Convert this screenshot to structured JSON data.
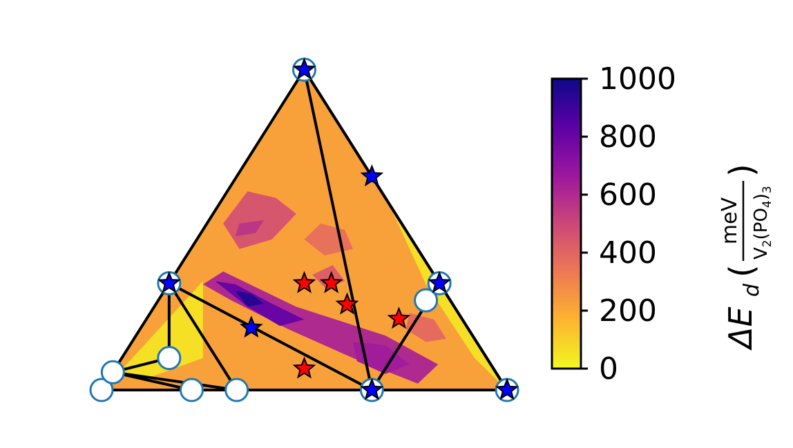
{
  "chart_data": {
    "type": "ternary-contour",
    "title": "",
    "colorbar": {
      "label_prefix": "ΔE",
      "label_subscript": "d",
      "unit_numerator": "meV",
      "unit_denominator_base": "V",
      "unit_denominator_sub1": "2",
      "unit_denominator_mid": "(PO",
      "unit_denominator_sub2": "4",
      "unit_denominator_close": ")",
      "unit_denominator_sub3": "3",
      "ticks": [
        0,
        200,
        400,
        600,
        800,
        1000
      ],
      "range": [
        0,
        1000
      ],
      "colormap": [
        "#f0f921",
        "#fdb42f",
        "#ed7953",
        "#cc4778",
        "#9c179e",
        "#5c01a6",
        "#0d0887"
      ]
    },
    "field_level": 220,
    "field_regions": [
      {
        "name": "upper-left band",
        "value": 450,
        "points": [
          [
            0.36,
            0.62
          ],
          [
            0.3,
            0.52
          ],
          [
            0.34,
            0.44
          ],
          [
            0.42,
            0.47
          ],
          [
            0.48,
            0.55
          ],
          [
            0.43,
            0.6
          ]
        ]
      },
      {
        "name": "upper-left core",
        "value": 560,
        "points": [
          [
            0.34,
            0.52
          ],
          [
            0.33,
            0.48
          ],
          [
            0.38,
            0.49
          ],
          [
            0.4,
            0.53
          ]
        ]
      },
      {
        "name": "upper-middle patch",
        "value": 360,
        "points": [
          [
            0.5,
            0.47
          ],
          [
            0.55,
            0.42
          ],
          [
            0.62,
            0.44
          ],
          [
            0.6,
            0.5
          ],
          [
            0.54,
            0.52
          ]
        ]
      },
      {
        "name": "diagonal trough outer",
        "value": 600,
        "points": [
          [
            0.25,
            0.33
          ],
          [
            0.3,
            0.37
          ],
          [
            0.48,
            0.26
          ],
          [
            0.7,
            0.17
          ],
          [
            0.83,
            0.08
          ],
          [
            0.78,
            0.02
          ],
          [
            0.62,
            0.1
          ],
          [
            0.46,
            0.19
          ],
          [
            0.32,
            0.28
          ]
        ]
      },
      {
        "name": "diagonal trough mid",
        "value": 800,
        "points": [
          [
            0.28,
            0.34
          ],
          [
            0.33,
            0.33
          ],
          [
            0.42,
            0.27
          ],
          [
            0.5,
            0.22
          ],
          [
            0.44,
            0.2
          ],
          [
            0.36,
            0.26
          ]
        ]
      },
      {
        "name": "diagonal trough core",
        "value": 950,
        "points": [
          [
            0.33,
            0.31
          ],
          [
            0.37,
            0.3
          ],
          [
            0.4,
            0.27
          ],
          [
            0.36,
            0.26
          ]
        ]
      },
      {
        "name": "right lobe",
        "value": 650,
        "points": [
          [
            0.62,
            0.15
          ],
          [
            0.7,
            0.14
          ],
          [
            0.76,
            0.08
          ],
          [
            0.7,
            0.05
          ],
          [
            0.63,
            0.09
          ]
        ]
      },
      {
        "name": "center patch",
        "value": 420,
        "points": [
          [
            0.52,
            0.36
          ],
          [
            0.55,
            0.32
          ],
          [
            0.6,
            0.34
          ],
          [
            0.57,
            0.39
          ]
        ]
      },
      {
        "name": "lower-right patch",
        "value": 380,
        "points": [
          [
            0.76,
            0.24
          ],
          [
            0.82,
            0.22
          ],
          [
            0.85,
            0.16
          ],
          [
            0.8,
            0.15
          ],
          [
            0.75,
            0.19
          ]
        ]
      },
      {
        "name": "lower-left yellow",
        "value": 60,
        "points": [
          [
            0.04,
            0.05
          ],
          [
            0.25,
            0.34
          ],
          [
            0.25,
            0.1
          ],
          [
            0.12,
            0.04
          ]
        ]
      },
      {
        "name": "right edge yellow",
        "value": 60,
        "points": [
          [
            0.5,
            1.0
          ],
          [
            0.85,
            0.34
          ],
          [
            1.0,
            0.0
          ],
          [
            0.92,
            0.1
          ],
          [
            0.8,
            0.33
          ],
          [
            0.68,
            0.66
          ]
        ]
      }
    ],
    "hull_lines": [
      [
        [
          0.0,
          0.0
        ],
        [
          0.5,
          1.0
        ]
      ],
      [
        [
          0.5,
          1.0
        ],
        [
          1.0,
          0.0
        ]
      ],
      [
        [
          0.0,
          0.0
        ],
        [
          1.0,
          0.0
        ]
      ],
      [
        [
          0.5,
          1.0
        ],
        [
          0.6667,
          0.0
        ]
      ],
      [
        [
          0.5,
          1.0
        ],
        [
          0.8333,
          0.3333
        ]
      ],
      [
        [
          0.6667,
          0.0
        ],
        [
          0.8333,
          0.3333
        ]
      ],
      [
        [
          0.1667,
          0.3333
        ],
        [
          0.1667,
          0.1
        ]
      ],
      [
        [
          0.1667,
          0.3333
        ],
        [
          0.3333,
          0.0
        ]
      ],
      [
        [
          0.1667,
          0.3333
        ],
        [
          0.6667,
          0.0
        ]
      ],
      [
        [
          0.0278,
          0.0556
        ],
        [
          0.1667,
          0.1
        ]
      ],
      [
        [
          0.0278,
          0.0556
        ],
        [
          0.2222,
          0.0
        ]
      ],
      [
        [
          0.0278,
          0.0556
        ],
        [
          0.3333,
          0.0
        ]
      ],
      [
        [
          0.8333,
          0.3333
        ],
        [
          1.0,
          0.0
        ]
      ]
    ],
    "open_circles": [
      [
        0.5,
        1.0
      ],
      [
        0.1667,
        0.3333
      ],
      [
        0.8333,
        0.3333
      ],
      [
        0.6667,
        0.0
      ],
      [
        1.0,
        0.0
      ],
      [
        0.0,
        0.0
      ],
      [
        0.0278,
        0.0556
      ],
      [
        0.1667,
        0.1
      ],
      [
        0.2222,
        0.0
      ],
      [
        0.3333,
        0.0
      ],
      [
        0.8,
        0.28
      ]
    ],
    "blue_stars": [
      [
        0.5,
        1.0
      ],
      [
        0.1667,
        0.3333
      ],
      [
        0.8333,
        0.3333
      ],
      [
        0.6667,
        0.0
      ],
      [
        1.0,
        0.0
      ],
      [
        0.6667,
        0.6667
      ],
      [
        0.3694,
        0.1944
      ]
    ],
    "red_stars": [
      [
        0.5,
        0.3333
      ],
      [
        0.5667,
        0.3333
      ],
      [
        0.6056,
        0.2667
      ],
      [
        0.7333,
        0.2222
      ],
      [
        0.5,
        0.0667
      ]
    ],
    "colors": {
      "open_circle_edge": "#1f77b4",
      "blue_star": "#0000ff",
      "red_star": "#ff0000",
      "hull_line": "#000000"
    }
  }
}
